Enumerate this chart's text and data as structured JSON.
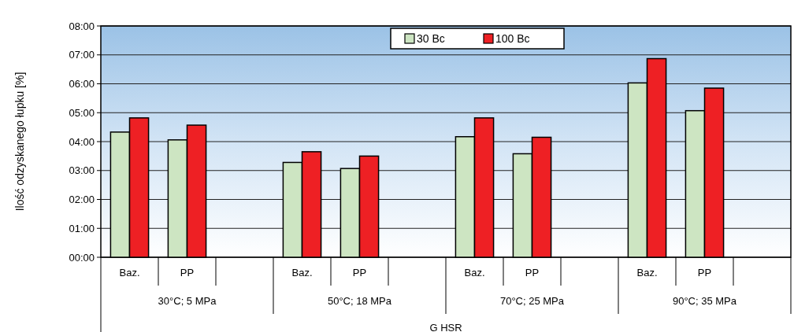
{
  "chart_data": {
    "type": "bar",
    "categories": [
      "Baz.",
      "PP",
      null,
      "Baz.",
      "PP",
      null,
      "Baz.",
      "PP",
      null,
      "Baz.",
      "PP",
      null
    ],
    "series": [
      {
        "name": "30 Bc",
        "color": "#cde5c2",
        "values": [
          4.33,
          4.06,
          null,
          3.28,
          3.07,
          null,
          4.17,
          3.58,
          null,
          6.03,
          5.07,
          null
        ]
      },
      {
        "name": "100 Bc",
        "color": "#ee2024",
        "values": [
          4.82,
          4.57,
          null,
          3.65,
          3.5,
          null,
          4.82,
          4.15,
          null,
          6.87,
          5.85,
          null
        ]
      }
    ],
    "ylabel": "Ilość odzyskanego łupku [%]",
    "xlabel": "G HSR",
    "annotations": [
      "30°C; 5 MPa",
      "50°C; 18 MPa",
      "70°C; 25 MPa",
      "90°C; 35 MPa"
    ],
    "ylim": [
      0,
      8
    ],
    "yticks": [
      {
        "value": 0,
        "label": "00:00"
      },
      {
        "value": 1,
        "label": "01:00"
      },
      {
        "value": 2,
        "label": "02:00"
      },
      {
        "value": 3,
        "label": "03:00"
      },
      {
        "value": 4,
        "label": "04:00"
      },
      {
        "value": 5,
        "label": "05:00"
      },
      {
        "value": 6,
        "label": "06:00"
      },
      {
        "value": 7,
        "label": "07:00"
      },
      {
        "value": 8,
        "label": "08:00"
      }
    ],
    "grid": "y",
    "legend": "top"
  }
}
